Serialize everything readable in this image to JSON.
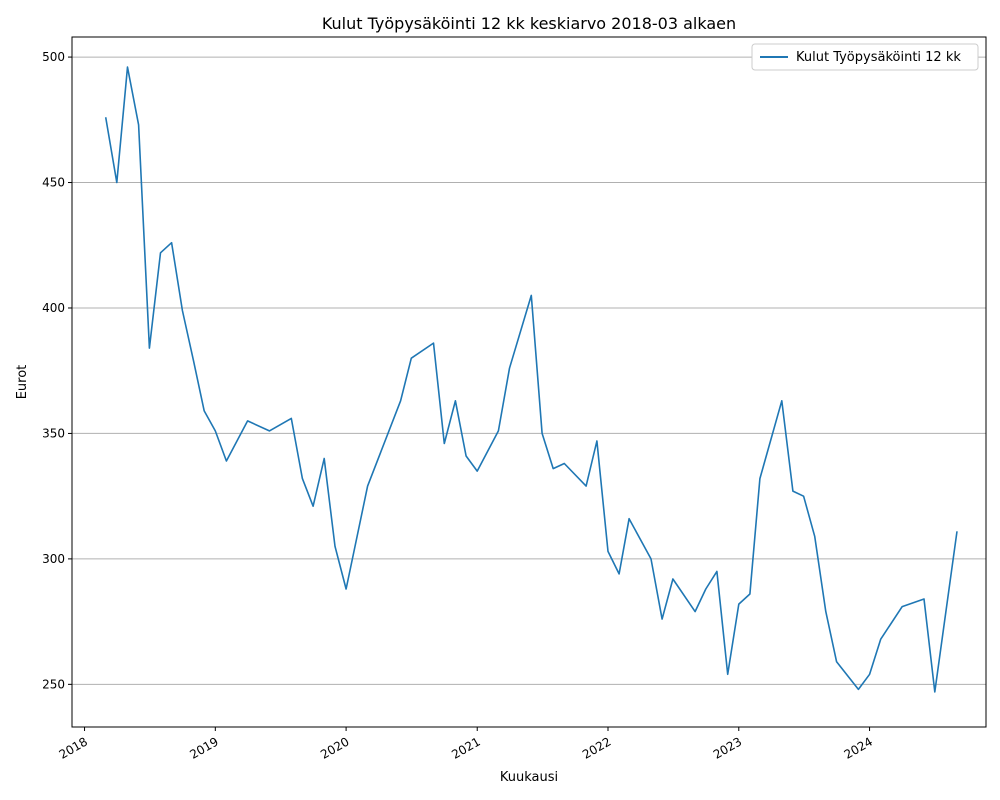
{
  "chart_data": {
    "type": "line",
    "title": "Kulut Työpysäköinti 12 kk keskiarvo 2018-03 alkaen",
    "xlabel": "Kuukausi",
    "ylabel": "Eurot",
    "x_tick_labels": [
      "2018",
      "2019",
      "2020",
      "2021",
      "2022",
      "2023",
      "2024"
    ],
    "y_ticks": [
      250,
      300,
      350,
      400,
      450,
      500
    ],
    "ylim": [
      233,
      508
    ],
    "xlim": [
      "2017-11-27",
      "2024-11-21"
    ],
    "grid": "horizontal",
    "legend_position": "top-right",
    "series": [
      {
        "name": "Kulut Työpysäköinti 12 kk",
        "color": "#1f77b4",
        "x": [
          "2018-03",
          "2018-04",
          "2018-05",
          "2018-06",
          "2018-07",
          "2018-08",
          "2018-09",
          "2018-10",
          "2018-11",
          "2018-12",
          "2019-01",
          "2019-02",
          "2019-04",
          "2019-06",
          "2019-08",
          "2019-09",
          "2019-10",
          "2019-11",
          "2019-12",
          "2020-01",
          "2020-03",
          "2020-06",
          "2020-07",
          "2020-09",
          "2020-10",
          "2020-11",
          "2020-12",
          "2021-01",
          "2021-03",
          "2021-04",
          "2021-06",
          "2021-07",
          "2021-08",
          "2021-09",
          "2021-11",
          "2021-12",
          "2022-01",
          "2022-02",
          "2022-03",
          "2022-05",
          "2022-06",
          "2022-07",
          "2022-09",
          "2022-10",
          "2022-11",
          "2022-12",
          "2023-01",
          "2023-02",
          "2023-03",
          "2023-05",
          "2023-06",
          "2023-07",
          "2023-08",
          "2023-09",
          "2023-10",
          "2023-12",
          "2024-01",
          "2024-02",
          "2024-04",
          "2024-06",
          "2024-07",
          "2024-09"
        ],
        "values": [
          476,
          450,
          496,
          473,
          384,
          422,
          426,
          399,
          379,
          359,
          351,
          339,
          355,
          351,
          356,
          332,
          321,
          340,
          305,
          288,
          329,
          363,
          380,
          386,
          346,
          363,
          341,
          335,
          351,
          376,
          405,
          350,
          336,
          338,
          329,
          347,
          303,
          294,
          316,
          300,
          276,
          292,
          279,
          288,
          295,
          254,
          282,
          286,
          332,
          363,
          327,
          325,
          309,
          279,
          259,
          248,
          254,
          268,
          281,
          284,
          247,
          311
        ]
      }
    ]
  }
}
